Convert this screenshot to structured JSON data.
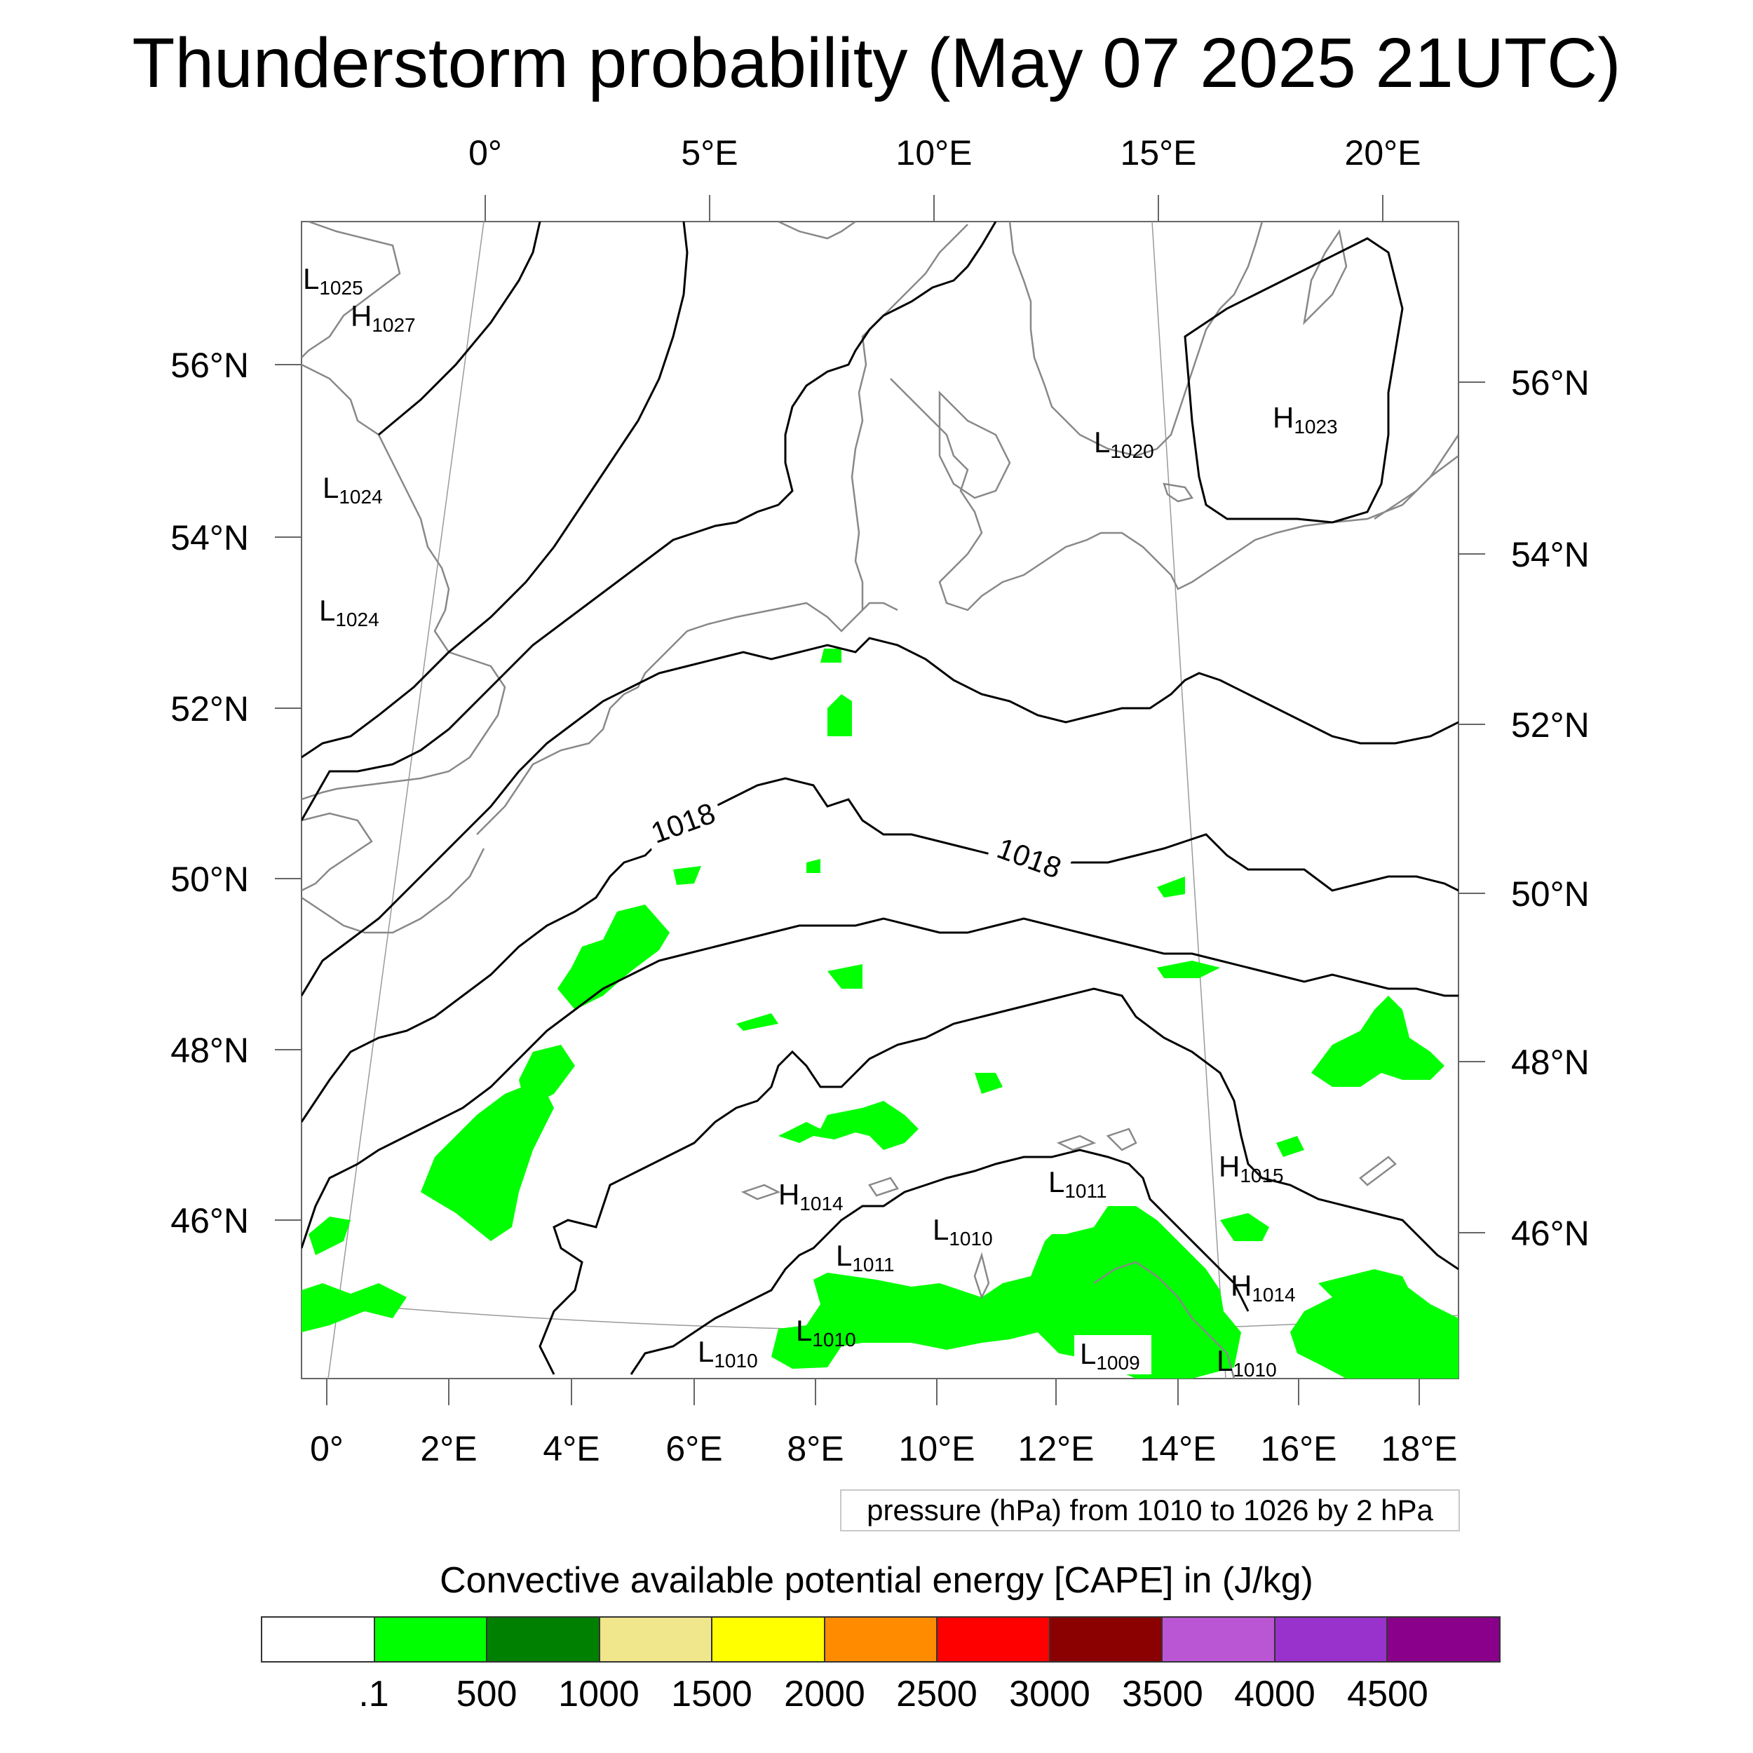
{
  "title": "Thunderstorm probability (May 07 2025 21UTC)",
  "top_lon_labels": [
    "0°",
    "5°E",
    "10°E",
    "15°E",
    "20°E"
  ],
  "bottom_lon_labels": [
    "0°",
    "2°E",
    "4°E",
    "6°E",
    "8°E",
    "10°E",
    "12°E",
    "14°E",
    "16°E",
    "18°E"
  ],
  "left_lat_labels": [
    "56°N",
    "54°N",
    "52°N",
    "50°N",
    "48°N",
    "46°N"
  ],
  "right_lat_labels": [
    "56°N",
    "54°N",
    "52°N",
    "50°N",
    "48°N",
    "46°N"
  ],
  "contour_labels": [
    "1018",
    "1018"
  ],
  "pressure_centers": [
    {
      "type": "L",
      "value": "1025"
    },
    {
      "type": "H",
      "value": "1027"
    },
    {
      "type": "L",
      "value": "1024"
    },
    {
      "type": "L",
      "value": "1024"
    },
    {
      "type": "L",
      "value": "1020"
    },
    {
      "type": "H",
      "value": "1023"
    },
    {
      "type": "H",
      "value": "1015"
    },
    {
      "type": "L",
      "value": "1011"
    },
    {
      "type": "H",
      "value": "1014"
    },
    {
      "type": "L",
      "value": "1010"
    },
    {
      "type": "L",
      "value": "1011"
    },
    {
      "type": "H",
      "value": "1014"
    },
    {
      "type": "L",
      "value": "1010"
    },
    {
      "type": "L",
      "value": "1010"
    },
    {
      "type": "L",
      "value": "1009"
    },
    {
      "type": "L",
      "value": "1010"
    }
  ],
  "contour_info": "pressure (hPa) from 1010 to 1026 by 2 hPa",
  "colorbar": {
    "title": "Convective available potential energy [CAPE] in (J/kg)",
    "colors": [
      "#ffffff",
      "#00ff00",
      "#008000",
      "#f0e68c",
      "#ffff00",
      "#ff8c00",
      "#ff0000",
      "#8b0000",
      "#ba55d3",
      "#9932cc",
      "#8b008b"
    ],
    "labels": [
      ".1",
      "500",
      "1000",
      "1500",
      "2000",
      "2500",
      "3000",
      "3500",
      "4000",
      "4500"
    ]
  },
  "colors": {
    "frame": "#666666",
    "coastline": "#888888",
    "isobar": "#000000",
    "cape_fill": "#00ff00"
  }
}
